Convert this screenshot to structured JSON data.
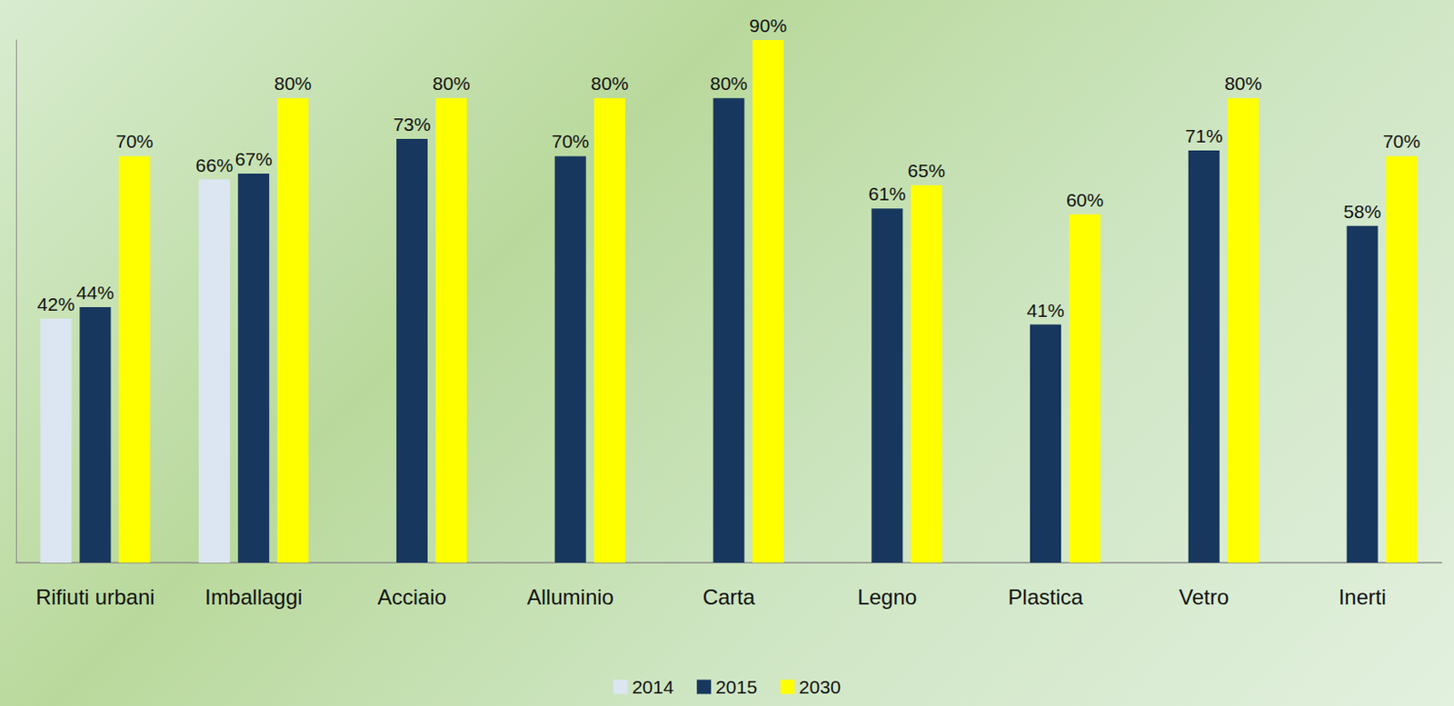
{
  "chart_data": {
    "type": "bar",
    "categories": [
      "Rifiuti urbani",
      "Imballaggi",
      "Acciaio",
      "Alluminio",
      "Carta",
      "Legno",
      "Plastica",
      "Vetro",
      "Inerti"
    ],
    "series": [
      {
        "name": "2014",
        "color": "#dce6f2",
        "values": [
          42,
          66,
          null,
          null,
          null,
          null,
          null,
          null,
          null
        ],
        "value_labels": [
          "42%",
          "66%",
          null,
          null,
          null,
          null,
          null,
          null,
          null
        ]
      },
      {
        "name": "2015",
        "color": "#17375e",
        "values": [
          44,
          67,
          73,
          70,
          80,
          61,
          41,
          71,
          58
        ],
        "value_labels": [
          "44%",
          "67%",
          "73%",
          "70%",
          "80%",
          "61%",
          "41%",
          "71%",
          "58%"
        ]
      },
      {
        "name": "2030",
        "color": "#ffff00",
        "values": [
          70,
          80,
          80,
          80,
          90,
          65,
          60,
          80,
          70
        ],
        "value_labels": [
          "70%",
          "80%",
          "80%",
          "80%",
          "90%",
          "65%",
          "60%",
          "80%",
          "70%"
        ]
      }
    ],
    "ylim": [
      0,
      90
    ],
    "data_labels": true,
    "tick_labels": "x",
    "legend": "bottom",
    "grid": false
  }
}
